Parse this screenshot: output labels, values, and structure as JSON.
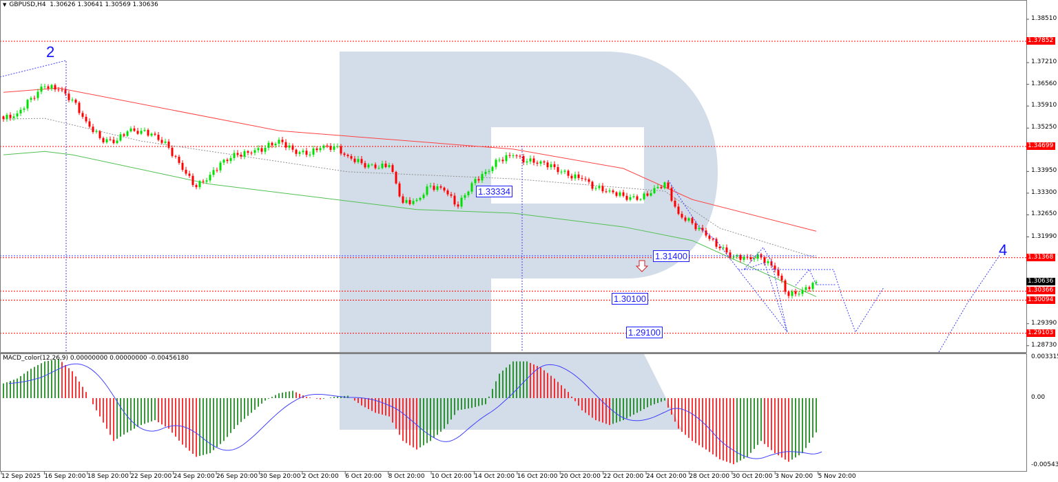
{
  "header": {
    "symbol_timeframe": "GBPUSD,H4",
    "ohlc": "1.30626 1.30641 1.30569 1.30636"
  },
  "macd_header": "MACD_color(12,26,9) 0.00000000 0.00000000 -0.00456180",
  "price_axis_ticks": [
    "1.38510",
    "1.37210",
    "1.36560",
    "1.35910",
    "1.35250",
    "1.33950",
    "1.33300",
    "1.32650",
    "1.31990",
    "1.29390",
    "1.28730"
  ],
  "price_levels": [
    {
      "value": "1.37852",
      "color": "#ff0000"
    },
    {
      "value": "1.34699",
      "color": "#ff0000"
    },
    {
      "value": "1.31368",
      "color": "#ff0000"
    },
    {
      "value": "1.30366",
      "color": "#ff0000"
    },
    {
      "value": "1.30094",
      "color": "#ff0000"
    },
    {
      "value": "1.29103",
      "color": "#ff0000"
    }
  ],
  "current_price": {
    "value": "1.30636",
    "color": "#000000"
  },
  "forecast_labels": [
    "1.33334",
    "1.31400",
    "1.30100",
    "1.29100"
  ],
  "wave_labels": [
    "2",
    "4"
  ],
  "macd_axis_ticks": [
    "0.0033156",
    "0.00",
    "-0.0054369"
  ],
  "time_labels": [
    "12 Sep 2025",
    "16 Sep 20:00",
    "18 Sep 20:00",
    "22 Sep 20:00",
    "24 Sep 20:00",
    "26 Sep 20:00",
    "30 Sep 20:00",
    "2 Oct 20:00",
    "6 Oct 20:00",
    "8 Oct 20:00",
    "10 Oct 20:00",
    "14 Oct 20:00",
    "16 Oct 20:00",
    "20 Oct 20:00",
    "22 Oct 20:00",
    "24 Oct 20:00",
    "28 Oct 20:00",
    "30 Oct 20:00",
    "3 Nov 20:00",
    "5 Nov 20:00"
  ],
  "chart_data": {
    "type": "candlestick",
    "symbol": "GBPUSD",
    "timeframe": "H4",
    "ylim": [
      1.2855,
      1.388
    ],
    "bull_color": "#00e000",
    "bear_color": "#ff0000",
    "closes_every_4_bars": [
      1.3552,
      1.3569,
      1.3615,
      1.365,
      1.364,
      1.361,
      1.3545,
      1.3495,
      1.348,
      1.3515,
      1.3517,
      1.3505,
      1.3466,
      1.34,
      1.3348,
      1.3385,
      1.343,
      1.3445,
      1.3451,
      1.3466,
      1.349,
      1.346,
      1.3445,
      1.3465,
      1.347,
      1.3441,
      1.342,
      1.3405,
      1.3414,
      1.3301,
      1.331,
      1.3352,
      1.3338,
      1.329,
      1.336,
      1.3394,
      1.343,
      1.3443,
      1.3425,
      1.3425,
      1.3408,
      1.3382,
      1.3373,
      1.3345,
      1.3338,
      1.3322,
      1.331,
      1.333,
      1.3362,
      1.3268,
      1.324,
      1.3203,
      1.3165,
      1.314,
      1.3138,
      1.3138,
      1.31,
      1.3022,
      1.304,
      1.3064
    ],
    "moving_averages": [
      {
        "color": "#ff4040",
        "style": "solid",
        "points": [
          [
            0,
            1.3632
          ],
          [
            4,
            1.3645
          ],
          [
            20,
            1.3517
          ],
          [
            37,
            1.3462
          ],
          [
            45,
            1.3404
          ],
          [
            50,
            1.3311
          ],
          [
            59,
            1.3216
          ]
        ]
      },
      {
        "color": "#50c050",
        "style": "solid",
        "points": [
          [
            0,
            1.3445
          ],
          [
            3,
            1.3455
          ],
          [
            5,
            1.3445
          ],
          [
            15,
            1.3357
          ],
          [
            30,
            1.3281
          ],
          [
            37,
            1.327
          ],
          [
            45,
            1.3229
          ],
          [
            50,
            1.3188
          ],
          [
            59,
            1.302
          ]
        ]
      },
      {
        "color": "#909090",
        "style": "dotted",
        "points": [
          [
            0,
            1.3552
          ],
          [
            3,
            1.3554
          ],
          [
            10,
            1.3486
          ],
          [
            25,
            1.3394
          ],
          [
            37,
            1.3373
          ],
          [
            48,
            1.3336
          ],
          [
            52,
            1.3225
          ],
          [
            59,
            1.3136
          ]
        ]
      }
    ],
    "macd": {
      "params": "12,26,9",
      "ylim": [
        -0.0054369,
        0.0033156
      ],
      "histogram_every_4_bars_e3": [
        1.2,
        1.6,
        2.4,
        3.0,
        3.2,
        2.2,
        0.5,
        -1.5,
        -3.5,
        -2.8,
        -2.2,
        -1.8,
        -2.5,
        -3.8,
        -4.8,
        -4.5,
        -3.5,
        -2.2,
        -1.2,
        -0.2,
        0.4,
        0.6,
        0.1,
        -0.1,
        0.1,
        0.2,
        -0.6,
        -1.2,
        -1.5,
        -3.5,
        -4.2,
        -3.5,
        -2.5,
        -1.0,
        -0.8,
        -0.5,
        2.0,
        3.0,
        3.0,
        2.5,
        1.6,
        0.5,
        -1.0,
        -1.8,
        -2.2,
        -1.8,
        -1.2,
        -0.6,
        -0.2,
        -2.5,
        -3.5,
        -4.2,
        -5.0,
        -5.4,
        -4.8,
        -3.5,
        -4.5,
        -5.2,
        -4.5,
        -2.8
      ],
      "up_color": "#008000",
      "down_color": "#ff0000",
      "signal_color": "#4040ff"
    }
  }
}
